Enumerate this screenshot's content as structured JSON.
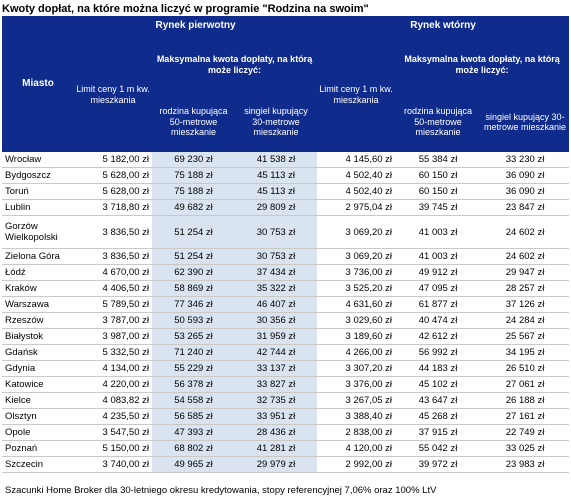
{
  "title": "Kwoty dopłat, na które można liczyć w programie \"Rodzina na swoim\"",
  "header": {
    "city_label": "Miasto",
    "primary_market": "Rynek pierwotny",
    "secondary_market": "Rynek wtórny",
    "limit_label": "Limit ceny 1 m kw. mieszkania",
    "limit_label_secondary": "Limit ceny 1 m kw. mieszkania",
    "max_subsidy": "Maksymalna kwota dopłaty, na którą może liczyć:",
    "max_subsidy_secondary": "Maksymalna kwota dopłaty, na którą może liczyć:",
    "family": "rodzina kupująca 50-metrowe mieszkanie",
    "single": "singiel kupujący 30-metrowe mieszkanie",
    "family_secondary": "rodzina kupująca 50-metrowe mieszkanie",
    "single_secondary": "singiel kupujący 30-metrowe mieszkanie"
  },
  "rows": [
    {
      "city": "Wrocław",
      "p_limit": "5 182,00 zł",
      "p_family": "69 230 zł",
      "p_single": "41 538 zł",
      "s_limit": "4 145,60 zł",
      "s_family": "55 384 zł",
      "s_single": "33 230 zł"
    },
    {
      "city": "Bydgoszcz",
      "p_limit": "5 628,00 zł",
      "p_family": "75 188 zł",
      "p_single": "45 113 zł",
      "s_limit": "4 502,40 zł",
      "s_family": "60 150 zł",
      "s_single": "36 090 zł"
    },
    {
      "city": "Toruń",
      "p_limit": "5 628,00 zł",
      "p_family": "75 188 zł",
      "p_single": "45 113 zł",
      "s_limit": "4 502,40 zł",
      "s_family": "60 150 zł",
      "s_single": "36 090 zł"
    },
    {
      "city": "Lublin",
      "p_limit": "3 718,80 zł",
      "p_family": "49 682 zł",
      "p_single": "29 809 zł",
      "s_limit": "2 975,04 zł",
      "s_family": "39 745 zł",
      "s_single": "23 847 zł"
    },
    {
      "city": "Gorzów Wielkopolski",
      "p_limit": "3 836,50 zł",
      "p_family": "51 254 zł",
      "p_single": "30 753 zł",
      "s_limit": "3 069,20 zł",
      "s_family": "41 003 zł",
      "s_single": "24 602 zł"
    },
    {
      "city": "Zielona Góra",
      "p_limit": "3 836,50 zł",
      "p_family": "51 254 zł",
      "p_single": "30 753 zł",
      "s_limit": "3 069,20 zł",
      "s_family": "41 003 zł",
      "s_single": "24 602 zł"
    },
    {
      "city": "Łódź",
      "p_limit": "4 670,00 zł",
      "p_family": "62 390 zł",
      "p_single": "37 434 zł",
      "s_limit": "3 736,00 zł",
      "s_family": "49 912 zł",
      "s_single": "29 947 zł"
    },
    {
      "city": "Kraków",
      "p_limit": "4 406,50 zł",
      "p_family": "58 869 zł",
      "p_single": "35 322 zł",
      "s_limit": "3 525,20 zł",
      "s_family": "47 095 zł",
      "s_single": "28 257 zł"
    },
    {
      "city": "Warszawa",
      "p_limit": "5 789,50 zł",
      "p_family": "77 346 zł",
      "p_single": "46 407 zł",
      "s_limit": "4 631,60 zł",
      "s_family": "61 877 zł",
      "s_single": "37 126 zł"
    },
    {
      "city": "Rzeszów",
      "p_limit": "3 787,00 zł",
      "p_family": "50 593 zł",
      "p_single": "30 356 zł",
      "s_limit": "3 029,60 zł",
      "s_family": "40 474 zł",
      "s_single": "24 284 zł"
    },
    {
      "city": "Białystok",
      "p_limit": "3 987,00 zł",
      "p_family": "53 265 zł",
      "p_single": "31 959 zł",
      "s_limit": "3 189,60 zł",
      "s_family": "42 612 zł",
      "s_single": "25 567 zł"
    },
    {
      "city": "Gdańsk",
      "p_limit": "5 332,50 zł",
      "p_family": "71 240 zł",
      "p_single": "42 744 zł",
      "s_limit": "4 266,00 zł",
      "s_family": "56 992 zł",
      "s_single": "34 195 zł"
    },
    {
      "city": "Gdynia",
      "p_limit": "4 134,00 zł",
      "p_family": "55 229 zł",
      "p_single": "33 137 zł",
      "s_limit": "3 307,20 zł",
      "s_family": "44 183 zł",
      "s_single": "26 510 zł"
    },
    {
      "city": "Katowice",
      "p_limit": "4 220,00 zł",
      "p_family": "56 378 zł",
      "p_single": "33 827 zł",
      "s_limit": "3 376,00 zł",
      "s_family": "45 102 zł",
      "s_single": "27 061 zł"
    },
    {
      "city": "Kielce",
      "p_limit": "4 083,82 zł",
      "p_family": "54 558 zł",
      "p_single": "32 735 zł",
      "s_limit": "3 267,05 zł",
      "s_family": "43 647 zł",
      "s_single": "26 188 zł"
    },
    {
      "city": "Olsztyn",
      "p_limit": "4 235,50 zł",
      "p_family": "56 585 zł",
      "p_single": "33 951 zł",
      "s_limit": "3 388,40 zł",
      "s_family": "45 268 zł",
      "s_single": "27 161 zł"
    },
    {
      "city": "Opole",
      "p_limit": "3 547,50 zł",
      "p_family": "47 393 zł",
      "p_single": "28 436 zł",
      "s_limit": "2 838,00 zł",
      "s_family": "37 915 zł",
      "s_single": "22 749 zł"
    },
    {
      "city": "Poznań",
      "p_limit": "5 150,00 zł",
      "p_family": "68 802 zł",
      "p_single": "41 281 zł",
      "s_limit": "4 120,00 zł",
      "s_family": "55 042 zł",
      "s_single": "33 025 zł"
    },
    {
      "city": "Szczecin",
      "p_limit": "3 740,00 zł",
      "p_family": "49 965 zł",
      "p_single": "29 979 zł",
      "s_limit": "2 992,00 zł",
      "s_family": "39 972 zł",
      "s_single": "23 983 zł"
    }
  ],
  "footnote": "Szacunki Home Broker dla 30-letniego okresu kredytowania, stopy referencyjnej 7,06% oraz 100% LtV"
}
